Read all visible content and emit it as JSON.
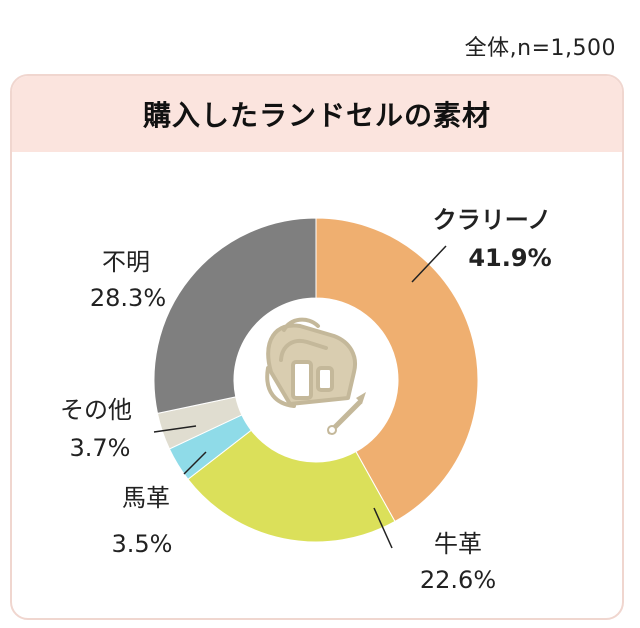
{
  "note": "全体,n=1,500",
  "chart_data": {
    "type": "pie",
    "title": "購入したランドセルの素材",
    "donut": true,
    "slices": [
      {
        "label": "クラリーノ",
        "value": 41.9,
        "value_label": "41.9%",
        "color": "#efaf70",
        "bold": true
      },
      {
        "label": "牛革",
        "value": 22.6,
        "value_label": "22.6%",
        "color": "#dbe05a",
        "bold": false
      },
      {
        "label": "馬革",
        "value": 3.5,
        "value_label": "3.5%",
        "color": "#8fdbe8",
        "bold": false
      },
      {
        "label": "その他",
        "value": 3.7,
        "value_label": "3.7%",
        "color": "#e0ddd0",
        "bold": false
      },
      {
        "label": "不明",
        "value": 28.3,
        "value_label": "28.3%",
        "color": "#7f7f7f",
        "bold": false
      }
    ],
    "start": "top",
    "direction": "clockwise",
    "center_icon": "school-backpack-icon",
    "icon_color": "#c4b89a"
  }
}
